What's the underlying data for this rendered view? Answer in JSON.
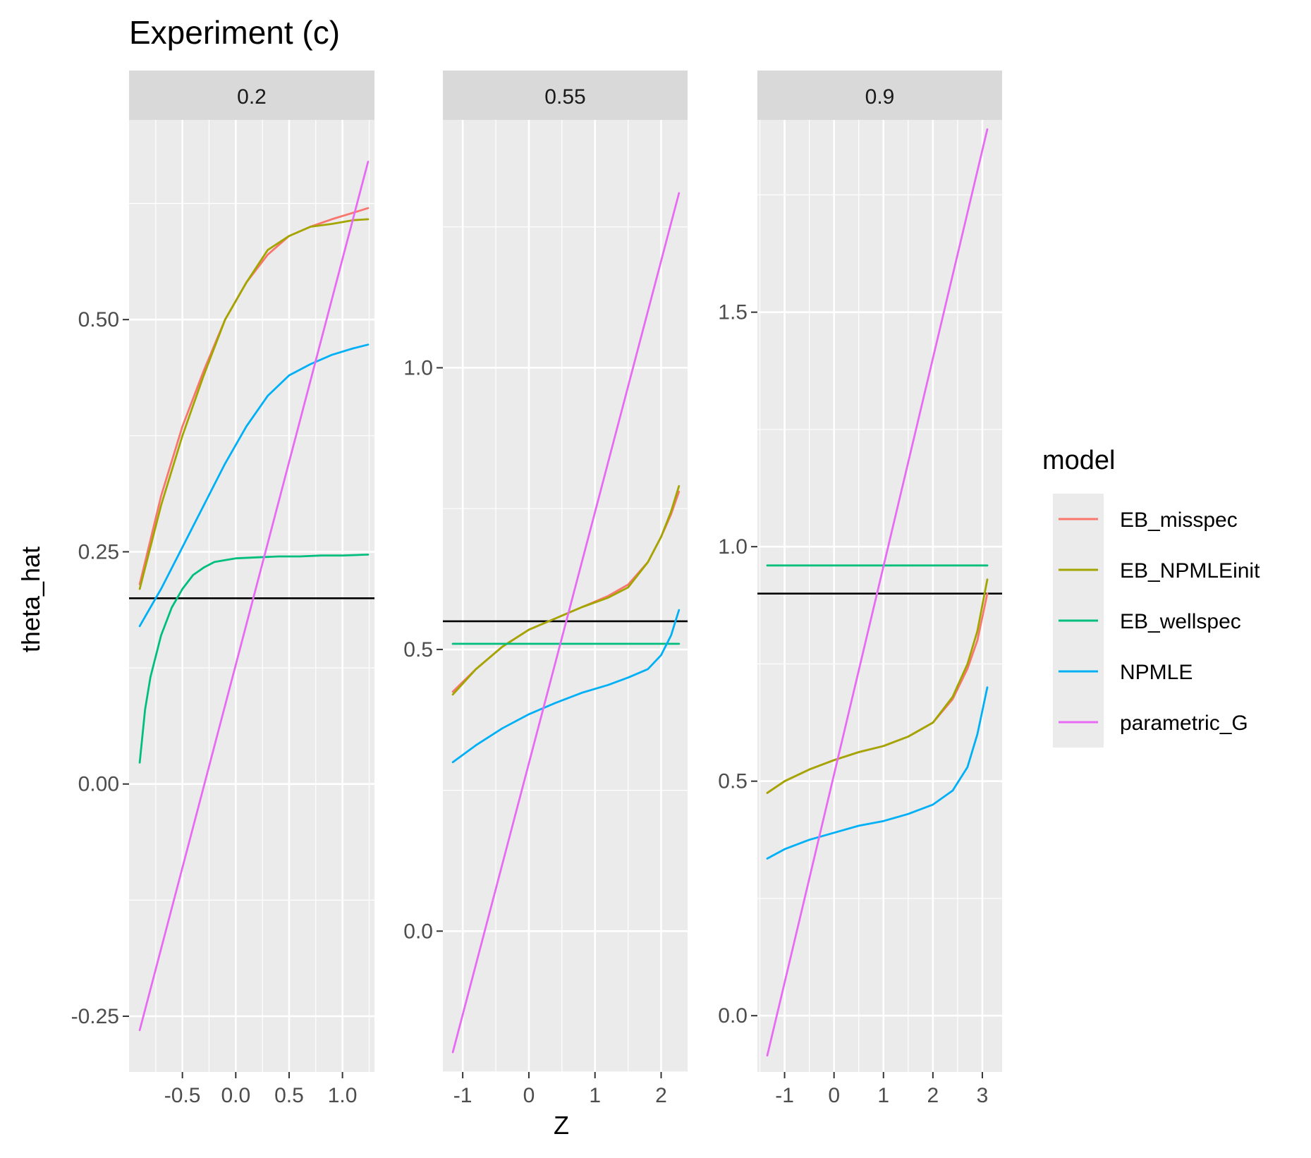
{
  "chart_data": {
    "type": "line",
    "title": "Experiment (c)",
    "xlabel": "Z",
    "ylabel": "theta_hat",
    "legend": {
      "title": "model",
      "position": "right"
    },
    "grid": true,
    "series_order": [
      "EB_misspec",
      "EB_NPMLEinit",
      "EB_wellspec",
      "NPMLE",
      "parametric_G"
    ],
    "colors": {
      "EB_misspec": "#F8766D",
      "EB_NPMLEinit": "#A3A500",
      "EB_wellspec": "#00BF7D",
      "NPMLE": "#00B0F6",
      "parametric_G": "#E76BF3",
      "reference_line": "#000000",
      "panel_bg": "#EBEBEB",
      "strip_bg": "#D9D9D9",
      "grid": "#FFFFFF"
    },
    "panels": [
      {
        "label": "0.2",
        "hline": 0.2,
        "xlim": [
          -1.0,
          1.3
        ],
        "ylim": [
          -0.31,
          0.715
        ],
        "x_ticks": [
          -0.5,
          0.0,
          0.5,
          1.0
        ],
        "x_tick_labels": [
          "-0.5",
          "0.0",
          "0.5",
          "1.0"
        ],
        "y_ticks": [
          -0.25,
          0.0,
          0.25,
          0.5
        ],
        "y_tick_labels": [
          "-0.25",
          "0.00",
          "0.25",
          "0.50"
        ],
        "series": [
          {
            "name": "EB_misspec",
            "x": [
              -0.9,
              -0.7,
              -0.5,
              -0.3,
              -0.1,
              0.1,
              0.3,
              0.5,
              0.7,
              0.9,
              1.1,
              1.24
            ],
            "y": [
              0.215,
              0.31,
              0.385,
              0.445,
              0.5,
              0.54,
              0.57,
              0.59,
              0.6,
              0.608,
              0.615,
              0.62
            ]
          },
          {
            "name": "EB_NPMLEinit",
            "x": [
              -0.9,
              -0.7,
              -0.5,
              -0.3,
              -0.1,
              0.1,
              0.3,
              0.5,
              0.7,
              0.9,
              1.1,
              1.24
            ],
            "y": [
              0.21,
              0.3,
              0.375,
              0.44,
              0.5,
              0.54,
              0.575,
              0.59,
              0.6,
              0.603,
              0.607,
              0.608
            ]
          },
          {
            "name": "EB_wellspec",
            "x": [
              -0.9,
              -0.85,
              -0.8,
              -0.7,
              -0.6,
              -0.5,
              -0.4,
              -0.3,
              -0.2,
              -0.1,
              0.0,
              0.2,
              0.4,
              0.6,
              0.8,
              1.0,
              1.24
            ],
            "y": [
              0.023,
              0.08,
              0.115,
              0.16,
              0.19,
              0.21,
              0.225,
              0.233,
              0.239,
              0.241,
              0.243,
              0.244,
              0.245,
              0.245,
              0.246,
              0.246,
              0.247
            ]
          },
          {
            "name": "NPMLE",
            "x": [
              -0.9,
              -0.7,
              -0.5,
              -0.3,
              -0.1,
              0.1,
              0.3,
              0.5,
              0.7,
              0.9,
              1.1,
              1.24
            ],
            "y": [
              0.17,
              0.21,
              0.255,
              0.3,
              0.345,
              0.385,
              0.418,
              0.44,
              0.452,
              0.462,
              0.469,
              0.473
            ]
          },
          {
            "name": "parametric_G",
            "x": [
              -0.9,
              1.24
            ],
            "y": [
              -0.265,
              0.67
            ]
          }
        ]
      },
      {
        "label": "0.55",
        "hline": 0.55,
        "xlim": [
          -1.3,
          2.4
        ],
        "ylim": [
          -0.25,
          1.44
        ],
        "x_ticks": [
          -1,
          0,
          1,
          2
        ],
        "x_tick_labels": [
          "-1",
          "0",
          "1",
          "2"
        ],
        "y_ticks": [
          0.0,
          0.5,
          1.0
        ],
        "y_tick_labels": [
          "0.0",
          "0.5",
          "1.0"
        ],
        "series": [
          {
            "name": "EB_misspec",
            "x": [
              -1.15,
              -0.8,
              -0.4,
              0.0,
              0.4,
              0.8,
              1.2,
              1.5,
              1.8,
              2.0,
              2.15,
              2.27
            ],
            "y": [
              0.425,
              0.465,
              0.505,
              0.535,
              0.555,
              0.575,
              0.595,
              0.615,
              0.655,
              0.7,
              0.74,
              0.78
            ]
          },
          {
            "name": "EB_NPMLEinit",
            "x": [
              -1.15,
              -0.8,
              -0.4,
              0.0,
              0.4,
              0.8,
              1.2,
              1.5,
              1.8,
              2.0,
              2.15,
              2.27
            ],
            "y": [
              0.42,
              0.465,
              0.505,
              0.535,
              0.555,
              0.575,
              0.592,
              0.61,
              0.655,
              0.7,
              0.745,
              0.79
            ]
          },
          {
            "name": "EB_wellspec",
            "x": [
              -1.15,
              2.27
            ],
            "y": [
              0.51,
              0.51
            ]
          },
          {
            "name": "NPMLE",
            "x": [
              -1.15,
              -0.8,
              -0.4,
              0.0,
              0.4,
              0.8,
              1.2,
              1.5,
              1.8,
              2.0,
              2.15,
              2.27
            ],
            "y": [
              0.3,
              0.33,
              0.36,
              0.385,
              0.405,
              0.423,
              0.437,
              0.45,
              0.465,
              0.49,
              0.525,
              0.57
            ]
          },
          {
            "name": "parametric_G",
            "x": [
              -1.15,
              2.27
            ],
            "y": [
              -0.215,
              1.31
            ]
          }
        ]
      },
      {
        "label": "0.9",
        "hline": 0.9,
        "xlim": [
          -1.55,
          3.4
        ],
        "ylim": [
          -0.12,
          1.91
        ],
        "x_ticks": [
          -1,
          0,
          1,
          2,
          3
        ],
        "x_tick_labels": [
          "-1",
          "0",
          "1",
          "2",
          "3"
        ],
        "y_ticks": [
          0.0,
          0.5,
          1.0,
          1.5
        ],
        "y_tick_labels": [
          "0.0",
          "0.5",
          "1.0",
          "1.5"
        ],
        "series": [
          {
            "name": "EB_misspec",
            "x": [
              -1.35,
              -1.0,
              -0.5,
              0.0,
              0.5,
              1.0,
              1.5,
              2.0,
              2.4,
              2.7,
              2.9,
              3.1
            ],
            "y": [
              0.475,
              0.5,
              0.525,
              0.545,
              0.562,
              0.575,
              0.595,
              0.625,
              0.675,
              0.74,
              0.8,
              0.9
            ]
          },
          {
            "name": "EB_NPMLEinit",
            "x": [
              -1.35,
              -1.0,
              -0.5,
              0.0,
              0.5,
              1.0,
              1.5,
              2.0,
              2.4,
              2.7,
              2.9,
              3.1
            ],
            "y": [
              0.475,
              0.5,
              0.525,
              0.545,
              0.562,
              0.575,
              0.595,
              0.625,
              0.68,
              0.75,
              0.82,
              0.93
            ]
          },
          {
            "name": "EB_wellspec",
            "x": [
              -1.35,
              3.1
            ],
            "y": [
              0.96,
              0.96
            ]
          },
          {
            "name": "NPMLE",
            "x": [
              -1.35,
              -1.0,
              -0.5,
              0.0,
              0.5,
              1.0,
              1.5,
              2.0,
              2.4,
              2.7,
              2.9,
              3.1
            ],
            "y": [
              0.335,
              0.355,
              0.375,
              0.39,
              0.405,
              0.415,
              0.43,
              0.45,
              0.48,
              0.53,
              0.6,
              0.7
            ]
          },
          {
            "name": "parametric_G",
            "x": [
              -1.35,
              3.1
            ],
            "y": [
              -0.085,
              1.89
            ]
          }
        ]
      }
    ]
  }
}
